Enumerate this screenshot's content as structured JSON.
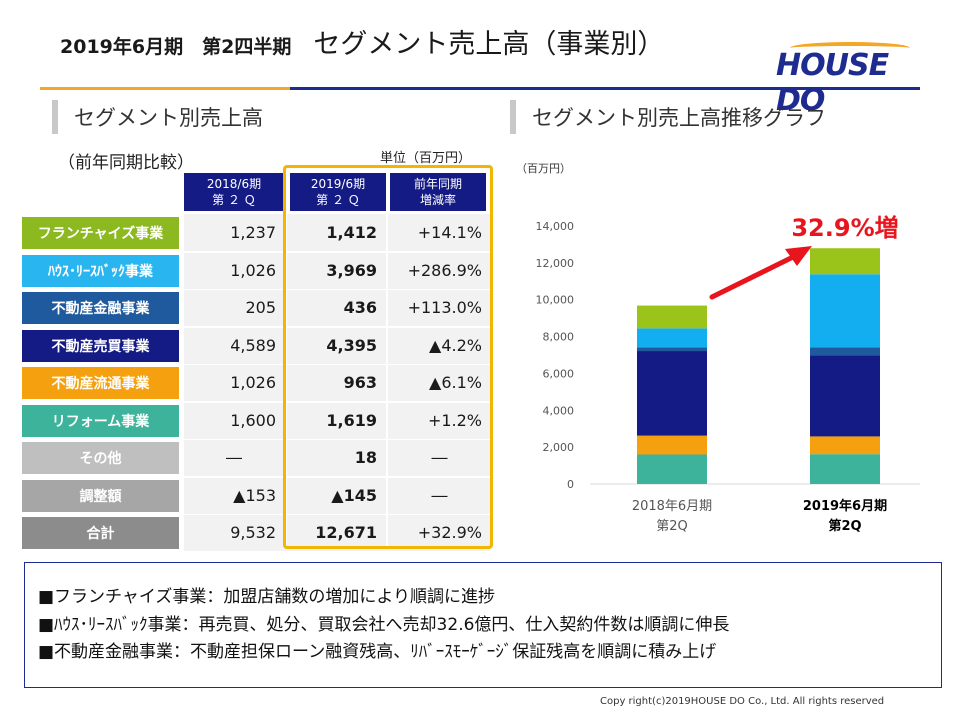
{
  "header": {
    "period": "2019年6月期　第2四半期",
    "title": "セグメント売上高（事業別）",
    "logo_text": "HOUSE DO"
  },
  "left_section": {
    "title": "セグメント別売上高",
    "subtitle": "（前年同期比較）",
    "unit": "単位（百万円）"
  },
  "table": {
    "columns": [
      {
        "line1": "2018/6期",
        "line2": "第 ２ Ｑ"
      },
      {
        "line1": "2019/6期",
        "line2": "第 ２ Ｑ"
      },
      {
        "line1": "前年同期",
        "line2": "増減率"
      }
    ],
    "rows": [
      {
        "label": "フランチャイズ事業",
        "color": "#8cb820",
        "prev": "1,237",
        "curr": "1,412",
        "change": "+14.1%"
      },
      {
        "label": "ﾊｳｽ･ﾘｰｽﾊﾞｯｸ事業",
        "color": "#29b6f0",
        "prev": "1,026",
        "curr": "3,969",
        "change": "+286.9%"
      },
      {
        "label": "不動産金融事業",
        "color": "#1f5a9e",
        "prev": "205",
        "curr": "436",
        "change": "+113.0%"
      },
      {
        "label": "不動産売買事業",
        "color": "#151b85",
        "prev": "4,589",
        "curr": "4,395",
        "change": "▲4.2%"
      },
      {
        "label": "不動産流通事業",
        "color": "#f5a00f",
        "prev": "1,026",
        "curr": "963",
        "change": "▲6.1%"
      },
      {
        "label": "リフォーム事業",
        "color": "#3cb39a",
        "prev": "1,600",
        "curr": "1,619",
        "change": "+1.2%"
      },
      {
        "label": "その他",
        "color": "#bfbfbf",
        "prev": "―",
        "curr": "18",
        "change": "―"
      },
      {
        "label": "調整額",
        "color": "#a6a6a6",
        "prev": "▲153",
        "curr": "▲145",
        "change": "―"
      },
      {
        "label": "合計",
        "color": "#8c8c8c",
        "prev": "9,532",
        "curr": "12,671",
        "change": "+32.9%"
      }
    ]
  },
  "right_section": {
    "title": "セグメント別売上高推移グラフ"
  },
  "chart_data": {
    "type": "bar",
    "stacked": true,
    "unit_label": "（百万円）",
    "categories": [
      {
        "line1": "2018年6月期",
        "line2": "第2Q",
        "bold": false
      },
      {
        "line1": "2019年6月期",
        "line2": "第2Q",
        "bold": true
      }
    ],
    "ylim": [
      0,
      14000
    ],
    "yticks": [
      "0",
      "2,000",
      "4,000",
      "6,000",
      "8,000",
      "10,000",
      "12,000",
      "14,000"
    ],
    "ytick_values": [
      0,
      2000,
      4000,
      6000,
      8000,
      10000,
      12000,
      14000
    ],
    "series": [
      {
        "name": "リフォーム事業",
        "color": "#3cb39a",
        "values": [
          1600,
          1619
        ]
      },
      {
        "name": "不動産流通事業",
        "color": "#f5a00f",
        "values": [
          1026,
          963
        ]
      },
      {
        "name": "不動産売買事業",
        "color": "#151b85",
        "values": [
          4589,
          4395
        ]
      },
      {
        "name": "不動産金融事業",
        "color": "#1f5a9e",
        "values": [
          205,
          436
        ]
      },
      {
        "name": "ﾊｳｽ･ﾘｰｽﾊﾞｯｸ事業",
        "color": "#13aef0",
        "values": [
          1026,
          3969
        ]
      },
      {
        "name": "フランチャイズ事業",
        "color": "#9bc41a",
        "values": [
          1237,
          1412
        ]
      }
    ],
    "annotation": {
      "text": "32.9%増",
      "color": "#e8141e"
    }
  },
  "notes": [
    "■フランチャイズ事業：加盟店舗数の増加により順調に進捗",
    "■ﾊｳｽ･ﾘｰｽﾊﾞｯｸ事業：再売買、処分、買取会社へ売却32.6億円、仕入契約件数は順調に伸長",
    "■不動産金融事業：不動産担保ローン融資残高、ﾘﾊﾞｰｽﾓｰｹﾞｰｼﾞ保証残高を順調に積み上げ"
  ],
  "footer": {
    "copyright": "Copy right(c)2019HOUSE DO Co., Ltd. All rights reserved"
  }
}
